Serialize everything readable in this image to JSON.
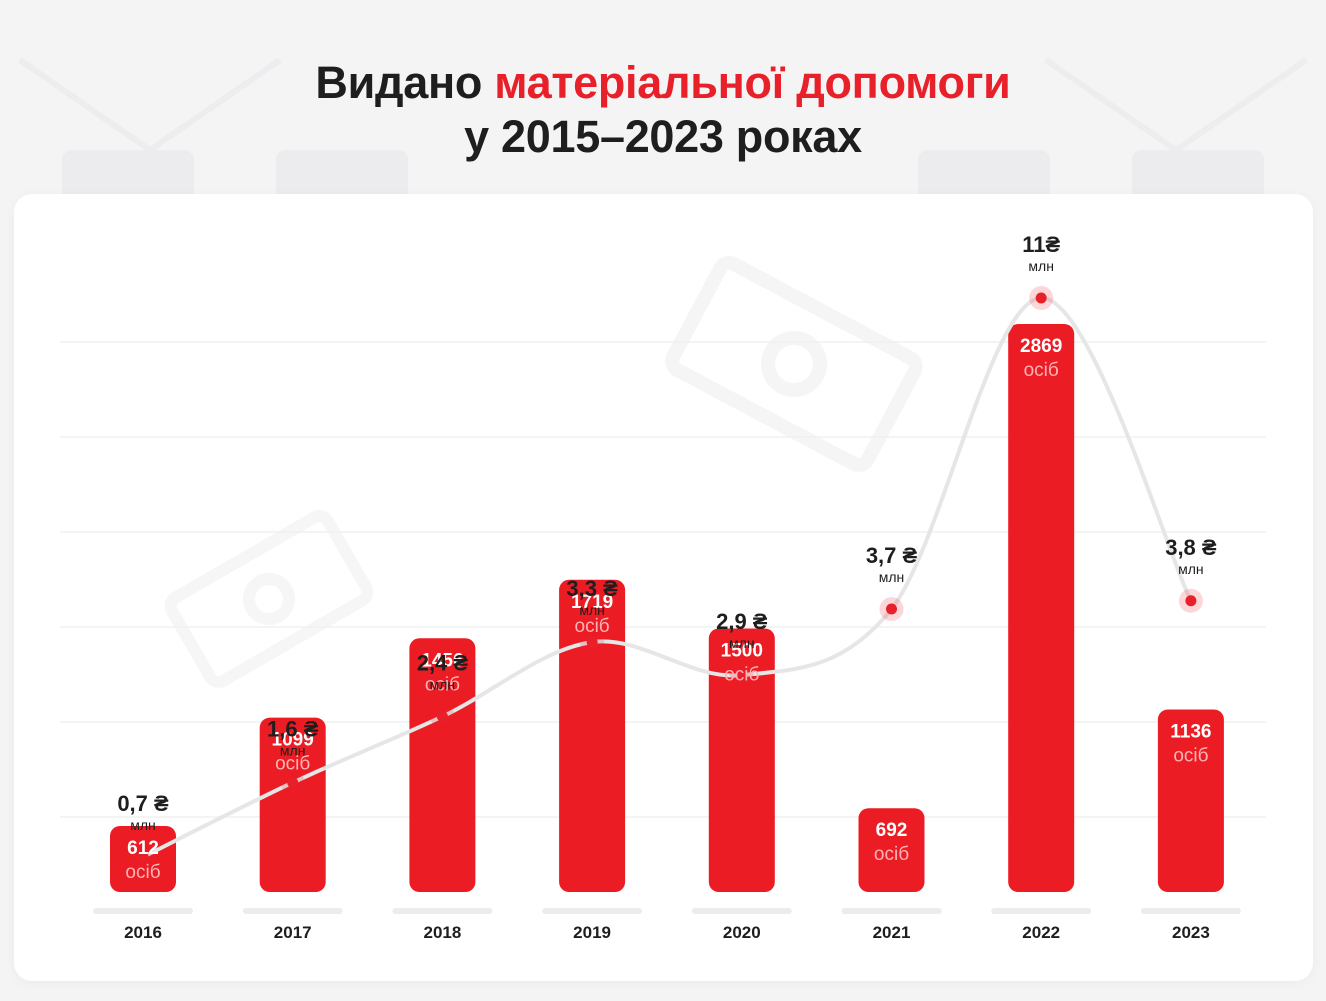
{
  "title": {
    "prefix": "Видано",
    "highlight": "матеріальної допомоги",
    "line2": "у 2015–2023 роках"
  },
  "colors": {
    "bar": "#ec1c24",
    "dot": "#e8202a",
    "line": "#e6e6e6",
    "text": "#1e1e1e",
    "bar_sub": "#ffb3b6"
  },
  "chart_data": {
    "type": "bar",
    "categories": [
      "2016",
      "2017",
      "2018",
      "2019",
      "2020",
      "2021",
      "2022",
      "2023"
    ],
    "series": [
      {
        "values": [
          612,
          1099,
          1456,
          1719,
          1500,
          692,
          2869,
          1136
        ],
        "value_labels": [
          "612",
          "1099",
          "1456",
          "1719",
          "1500",
          "692",
          "2869",
          "1136"
        ],
        "unit": "осіб"
      },
      {
        "type": "line",
        "values": [
          0.7,
          1.6,
          2.4,
          3.3,
          2.9,
          3.7,
          11,
          3.8
        ],
        "value_labels": [
          "0,7 ₴",
          "1,6 ₴",
          "2,4 ₴",
          "3,3 ₴",
          "2,9 ₴",
          "3,7 ₴",
          "11₴",
          "3,8 ₴"
        ],
        "unit": "млн"
      }
    ],
    "grid": true
  }
}
